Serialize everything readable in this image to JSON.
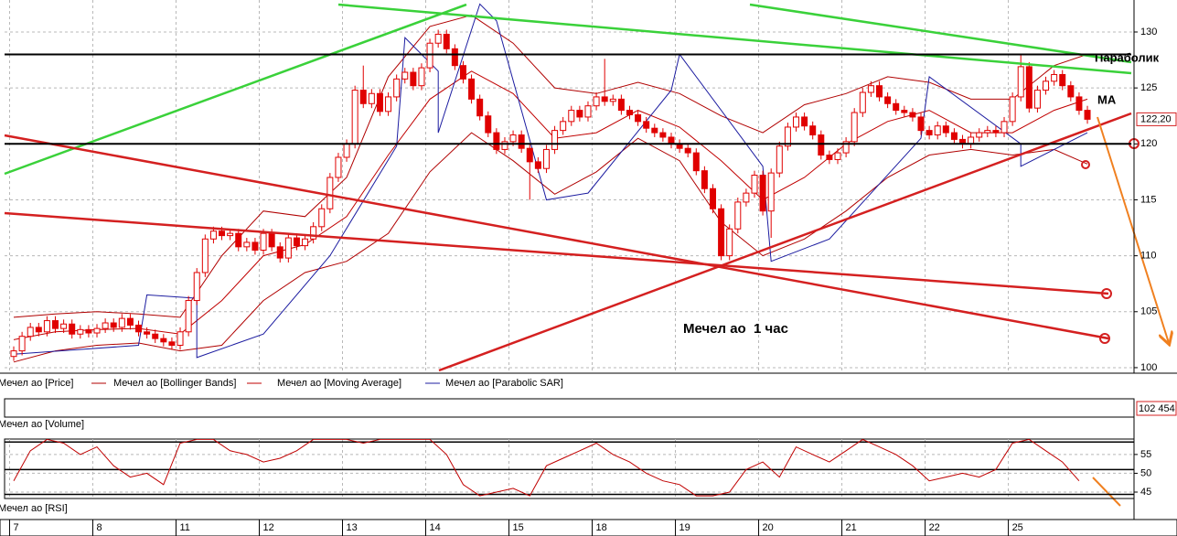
{
  "chart_data": {
    "type": "candlestick",
    "ylim": [
      99.75,
      132.86
    ],
    "yticks": [
      100,
      105,
      110,
      115,
      120,
      125,
      130
    ],
    "xlim": [
      -1.1,
      134.6
    ],
    "xticks": [
      {
        "value": 0,
        "label": "7"
      },
      {
        "value": 10,
        "label": "8"
      },
      {
        "value": 20,
        "label": "11"
      },
      {
        "value": 30,
        "label": "12"
      },
      {
        "value": 40,
        "label": "13"
      },
      {
        "value": 50,
        "label": "14"
      },
      {
        "value": 60,
        "label": "15"
      },
      {
        "value": 70,
        "label": "18"
      },
      {
        "value": 80,
        "label": "19"
      },
      {
        "value": 90,
        "label": "20"
      },
      {
        "value": 100,
        "label": "21"
      },
      {
        "value": 110,
        "label": "22"
      },
      {
        "value": 120,
        "label": "25"
      }
    ],
    "grid": true,
    "levels": [
      128,
      120
    ],
    "last_price": {
      "value": 122.2,
      "label": "122,20"
    },
    "annotations": [
      "Параболик",
      "MA",
      "Мечел ао  1 час"
    ],
    "series": [
      {
        "name": "Мечел ао [Price]",
        "color": "#e00000",
        "open": [
          101.0,
          101.5,
          102.8,
          103.6,
          103.2,
          104.2,
          103.5,
          103.9,
          103.0,
          103.4,
          103.1,
          103.5,
          104.0,
          103.6,
          104.4,
          103.8,
          103.2,
          103.0,
          102.6,
          102.3,
          102.0,
          103.2,
          106.0,
          108.5,
          111.5,
          112.2,
          111.8,
          112.0,
          110.8,
          111.2,
          110.5,
          112.0,
          110.8,
          109.8,
          111.6,
          110.9,
          111.5,
          112.6,
          114.2,
          117.0,
          118.8,
          120.0,
          124.8,
          123.6,
          124.5,
          122.9,
          124.2,
          125.8,
          126.4,
          125.2,
          126.8,
          129.0,
          129.8,
          128.5,
          127.0,
          125.8,
          124.0,
          122.5,
          121.0,
          119.5,
          120.2,
          120.8,
          119.6,
          118.4,
          117.8,
          119.5,
          121.2,
          122.0,
          123.0,
          122.4,
          123.4,
          124.2,
          123.8,
          124.0,
          123.0,
          122.6,
          122.0,
          121.4,
          121.0,
          120.6,
          120.0,
          119.6,
          119.2,
          117.6,
          116.0,
          114.2,
          110.0,
          112.4,
          114.8,
          115.6,
          117.2,
          114.0,
          117.4,
          119.8,
          121.5,
          122.4,
          121.6,
          120.8,
          119.0,
          118.6,
          119.2,
          120.2,
          122.8,
          124.6,
          125.2,
          124.2,
          123.6,
          123.0,
          122.8,
          122.4,
          121.2,
          120.8,
          121.6,
          121.0,
          120.4,
          120.0,
          120.6,
          121.0,
          121.2,
          121.0,
          122.0,
          124.2,
          126.9,
          123.2,
          124.8,
          125.6,
          126.2,
          125.2,
          124.2,
          123.0
        ],
        "high": [
          101.9,
          103.2,
          104.0,
          104.0,
          104.6,
          104.6,
          104.3,
          104.3,
          103.8,
          103.8,
          103.9,
          104.4,
          104.4,
          104.8,
          104.8,
          104.2,
          103.6,
          103.4,
          103.0,
          102.7,
          103.6,
          106.4,
          108.9,
          111.9,
          112.6,
          112.6,
          112.4,
          112.4,
          111.6,
          111.6,
          112.4,
          112.4,
          111.2,
          112.0,
          112.0,
          111.9,
          113.0,
          114.6,
          117.4,
          119.2,
          120.4,
          125.2,
          127.0,
          124.9,
          124.9,
          124.6,
          126.2,
          126.8,
          126.8,
          127.2,
          129.4,
          130.2,
          130.2,
          128.9,
          127.4,
          126.2,
          124.4,
          122.9,
          121.4,
          120.6,
          121.2,
          121.2,
          120.0,
          118.8,
          119.9,
          121.6,
          122.4,
          123.4,
          123.4,
          123.8,
          124.6,
          127.6,
          124.4,
          124.4,
          123.4,
          123.0,
          122.4,
          121.8,
          121.4,
          121.0,
          120.4,
          120.0,
          119.6,
          118.0,
          116.4,
          114.6,
          112.8,
          115.2,
          116.0,
          117.6,
          117.6,
          117.8,
          120.2,
          121.9,
          122.8,
          122.8,
          122.0,
          121.2,
          119.4,
          119.6,
          120.6,
          123.2,
          125.0,
          125.6,
          125.6,
          124.6,
          124.0,
          123.4,
          123.2,
          122.8,
          121.6,
          122.0,
          122.0,
          121.4,
          120.8,
          121.0,
          121.4,
          121.6,
          121.6,
          122.4,
          124.6,
          128.0,
          127.3,
          125.2,
          126.0,
          126.6,
          126.6,
          125.6,
          124.6,
          123.4
        ],
        "low": [
          100.6,
          101.1,
          102.4,
          102.8,
          102.8,
          103.1,
          103.1,
          102.6,
          102.6,
          102.7,
          102.7,
          103.1,
          103.2,
          103.2,
          103.4,
          102.8,
          102.6,
          102.2,
          101.9,
          101.6,
          101.6,
          102.8,
          105.6,
          108.1,
          111.1,
          111.4,
          111.4,
          110.4,
          110.4,
          110.1,
          110.1,
          110.4,
          109.4,
          109.4,
          110.5,
          110.5,
          111.1,
          112.2,
          113.8,
          116.6,
          118.4,
          119.6,
          123.2,
          123.2,
          122.5,
          122.5,
          123.8,
          125.4,
          124.8,
          124.8,
          126.4,
          128.6,
          128.1,
          126.6,
          125.4,
          123.6,
          122.1,
          120.6,
          119.1,
          119.1,
          119.8,
          119.2,
          115.0,
          117.4,
          117.4,
          119.1,
          120.8,
          121.6,
          122.0,
          122.0,
          123.0,
          123.4,
          123.4,
          122.6,
          122.2,
          121.6,
          121.0,
          120.6,
          120.2,
          119.6,
          119.2,
          118.8,
          117.2,
          115.6,
          113.8,
          109.6,
          109.6,
          112.0,
          114.4,
          115.2,
          113.6,
          111.6,
          117.0,
          119.4,
          121.1,
          121.2,
          120.4,
          118.6,
          118.2,
          118.2,
          118.8,
          119.8,
          122.4,
          124.2,
          123.8,
          123.2,
          122.6,
          122.4,
          122.0,
          120.8,
          120.4,
          120.4,
          120.6,
          120.0,
          119.6,
          119.6,
          120.2,
          120.6,
          120.6,
          120.6,
          121.6,
          123.8,
          122.8,
          122.8,
          124.4,
          125.2,
          124.8,
          123.8,
          122.6,
          121.8
        ],
        "close": [
          101.5,
          102.8,
          103.6,
          103.2,
          104.2,
          103.5,
          103.9,
          103.0,
          103.4,
          103.1,
          103.5,
          104.0,
          103.6,
          104.4,
          103.8,
          103.2,
          103.0,
          102.6,
          102.3,
          102.0,
          103.2,
          106.0,
          108.5,
          111.5,
          112.2,
          111.8,
          112.0,
          110.8,
          111.2,
          110.5,
          112.0,
          110.8,
          109.8,
          111.6,
          110.9,
          111.5,
          112.6,
          114.2,
          117.0,
          118.8,
          120.0,
          124.8,
          123.6,
          124.5,
          122.9,
          124.2,
          125.8,
          126.4,
          125.2,
          126.8,
          129.0,
          129.8,
          128.5,
          127.0,
          125.8,
          124.0,
          122.5,
          121.0,
          119.5,
          120.2,
          120.8,
          119.6,
          118.4,
          117.8,
          119.5,
          121.2,
          122.0,
          123.0,
          122.4,
          123.4,
          124.2,
          123.8,
          124.0,
          123.0,
          122.6,
          122.0,
          121.4,
          121.0,
          120.6,
          120.0,
          119.6,
          119.2,
          117.6,
          116.0,
          114.2,
          110.0,
          112.4,
          114.8,
          115.6,
          117.2,
          114.0,
          117.4,
          119.8,
          121.5,
          122.4,
          121.6,
          120.8,
          119.0,
          118.6,
          119.2,
          120.2,
          122.8,
          124.6,
          125.2,
          124.2,
          123.6,
          123.0,
          122.8,
          122.4,
          121.2,
          120.8,
          121.6,
          121.0,
          120.4,
          120.0,
          120.6,
          121.0,
          121.2,
          121.0,
          122.0,
          124.2,
          126.9,
          123.2,
          124.8,
          125.6,
          126.2,
          125.2,
          124.2,
          123.0,
          122.2
        ]
      },
      {
        "name": "Мечел ао [Bollinger Bands]",
        "color": "#b00000",
        "x": [
          0,
          5,
          10,
          15,
          20,
          25,
          30,
          35,
          40,
          45,
          50,
          55,
          60,
          65,
          70,
          75,
          80,
          85,
          90,
          95,
          100,
          105,
          110,
          115,
          120,
          125,
          129
        ],
        "upper": [
          104.5,
          104.8,
          105.0,
          104.8,
          104.5,
          110.0,
          114.0,
          113.5,
          117.0,
          126.0,
          130.5,
          131.5,
          129.0,
          125.0,
          124.5,
          125.5,
          124.5,
          122.5,
          121.0,
          123.5,
          124.5,
          126.0,
          125.5,
          124.0,
          124.0,
          127.0,
          128.0
        ],
        "lower": [
          100.5,
          101.5,
          102.0,
          102.2,
          101.5,
          102.0,
          106.0,
          108.5,
          109.5,
          112.0,
          117.5,
          121.0,
          118.5,
          115.5,
          117.5,
          120.5,
          118.5,
          113.0,
          110.0,
          111.5,
          114.0,
          117.0,
          119.0,
          119.5,
          119.0,
          119.5,
          118.2
        ]
      },
      {
        "name": "Мечел ао [Moving Average]",
        "color": "#c00000",
        "x": [
          0,
          5,
          10,
          15,
          20,
          25,
          30,
          35,
          40,
          45,
          50,
          55,
          60,
          65,
          70,
          75,
          80,
          85,
          90,
          95,
          100,
          105,
          110,
          115,
          120,
          125,
          129
        ],
        "values": [
          102.5,
          103.2,
          103.4,
          103.5,
          103.0,
          106.0,
          110.0,
          111.0,
          113.5,
          119.0,
          124.0,
          126.5,
          124.5,
          120.5,
          121.0,
          123.0,
          121.5,
          118.5,
          115.0,
          117.0,
          120.0,
          122.0,
          123.0,
          121.0,
          121.0,
          123.0,
          124.0
        ]
      },
      {
        "name": "Мечел ао [Parabolic SAR]",
        "color": "#1c1ca0",
        "x": [
          0,
          15,
          16,
          22,
          22,
          30,
          38,
          46,
          47,
          51,
          51,
          56,
          58,
          64,
          69,
          79,
          80,
          90,
          91,
          98,
          109,
          110,
          121,
          121,
          129
        ],
        "values": [
          101.2,
          102.0,
          106.5,
          106.2,
          100.9,
          103.0,
          110.0,
          119.8,
          129.5,
          126.5,
          121.0,
          132.5,
          131.0,
          115.0,
          115.6,
          124.8,
          128.0,
          118.0,
          109.5,
          111.5,
          120.5,
          126.0,
          120.0,
          118.0,
          121.0
        ]
      }
    ],
    "volume": {
      "name": "Мечел ао [Volume]",
      "last_label": "102 454"
    },
    "rsi": {
      "name": "Мечел ао [RSI]",
      "color": "#c00000",
      "ylim": [
        43.3,
        59.1
      ],
      "yticks": [
        45,
        50,
        55
      ],
      "levels": [
        58.3,
        51,
        44.4
      ],
      "x": [
        0,
        2,
        4,
        6,
        8,
        10,
        12,
        14,
        16,
        18,
        20,
        22,
        24,
        26,
        28,
        30,
        32,
        34,
        36,
        38,
        40,
        42,
        44,
        46,
        48,
        50,
        52,
        54,
        56,
        58,
        60,
        62,
        64,
        66,
        68,
        70,
        72,
        74,
        76,
        78,
        80,
        82,
        84,
        86,
        88,
        90,
        92,
        94,
        96,
        98,
        100,
        102,
        104,
        106,
        108,
        110,
        112,
        114,
        116,
        118,
        120,
        122,
        124,
        126,
        128
      ],
      "values": [
        48,
        56,
        59,
        58,
        55,
        57,
        52,
        49,
        50,
        47,
        58,
        59,
        59,
        56,
        55,
        53,
        54,
        56,
        59,
        59,
        59,
        58,
        59,
        59,
        59,
        59,
        55,
        47,
        44,
        45,
        46,
        44,
        52,
        54,
        56,
        58,
        55,
        53,
        50,
        48,
        47,
        44,
        44,
        45,
        51,
        53,
        49,
        57,
        55,
        53,
        56,
        59,
        57,
        55,
        52,
        48,
        49,
        50,
        49,
        51,
        58,
        59,
        56,
        53,
        48
      ]
    }
  }
}
